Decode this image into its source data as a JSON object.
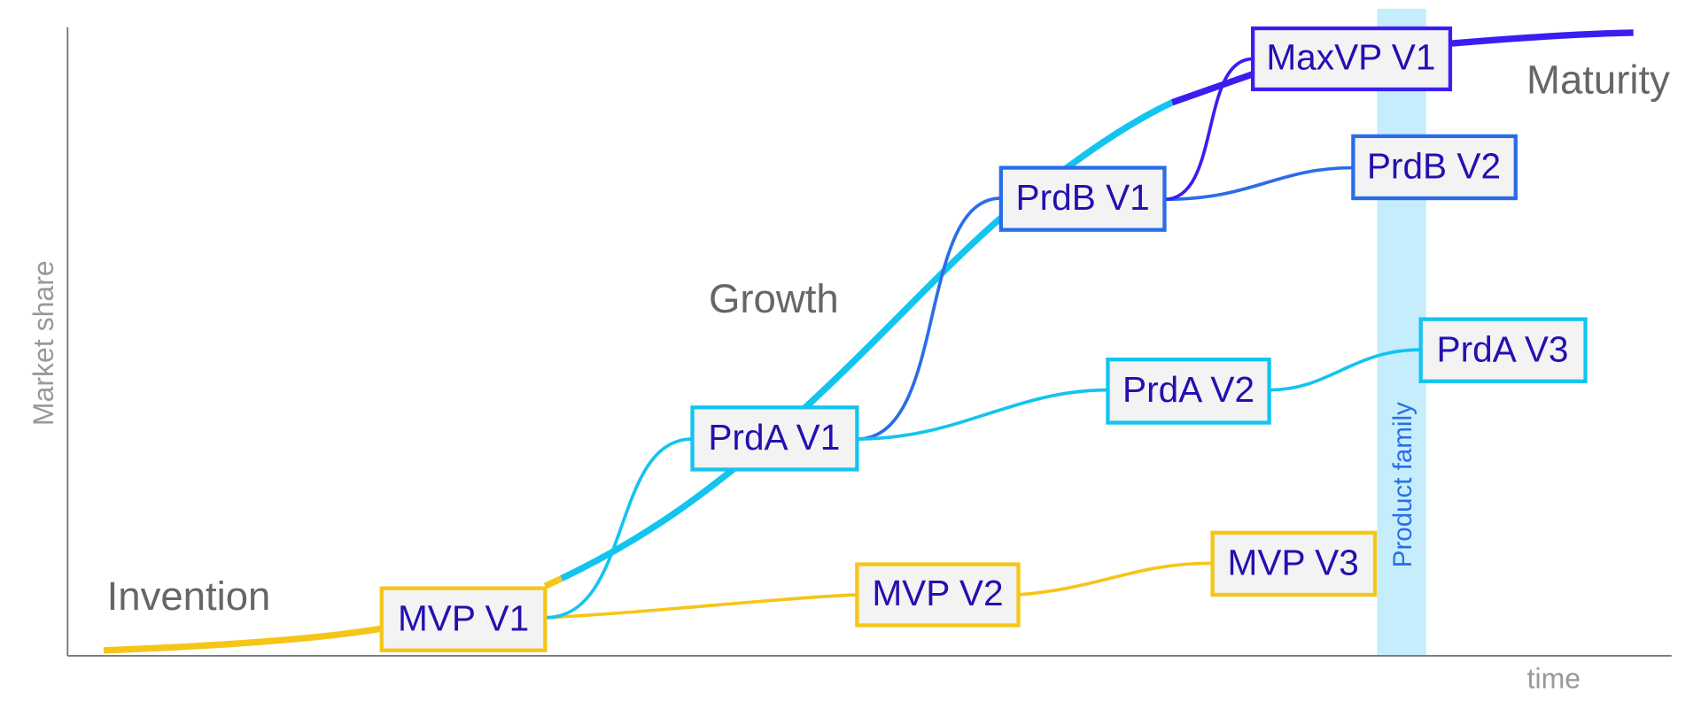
{
  "axes": {
    "y_label": "Market share",
    "x_label": "time"
  },
  "phases": [
    "Invention",
    "Growth",
    "Maturity"
  ],
  "band_label": "Product family",
  "nodes": [
    {
      "label": "MVP V1"
    },
    {
      "label": "MVP V2"
    },
    {
      "label": "MVP V3"
    },
    {
      "label": "PrdA V1"
    },
    {
      "label": "PrdA V2"
    },
    {
      "label": "PrdA V3"
    },
    {
      "label": "PrdB V1"
    },
    {
      "label": "PrdB V2"
    },
    {
      "label": "MaxVP V1"
    }
  ]
}
